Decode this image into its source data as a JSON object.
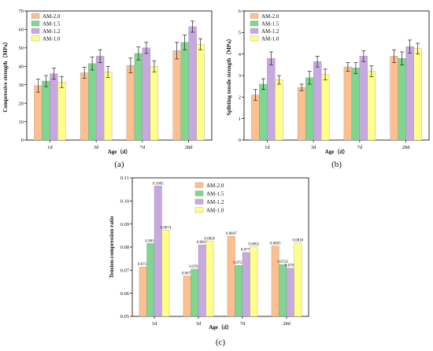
{
  "colors": [
    "#FDBF8E",
    "#7ED68F",
    "#C8A8E0",
    "#FFFF8A"
  ],
  "chart_data": [
    {
      "type": "bar",
      "panel_label": "(a)",
      "categories": [
        "1d",
        "3d",
        "7d",
        "28d"
      ],
      "xlabel": "Age（d）",
      "ylabel": "Compressive strength（MPa）",
      "ylim": [
        0,
        70
      ],
      "yticks": [
        0,
        10,
        20,
        30,
        40,
        50,
        60,
        70
      ],
      "legend_position": "top-left",
      "series": [
        {
          "name": "AM-2.0",
          "values": [
            29.5,
            36.5,
            40.5,
            48.5
          ],
          "errors": [
            3.5,
            3.0,
            4.0,
            4.5
          ]
        },
        {
          "name": "AM-1.5",
          "values": [
            32.0,
            41.5,
            47.0,
            53.0
          ],
          "errors": [
            3.0,
            3.5,
            3.5,
            4.0
          ]
        },
        {
          "name": "AM-1.2",
          "values": [
            36.0,
            45.5,
            50.0,
            61.5
          ],
          "errors": [
            3.0,
            3.5,
            3.0,
            3.0
          ]
        },
        {
          "name": "AM-1.0",
          "values": [
            31.5,
            37.0,
            40.0,
            52.0
          ],
          "errors": [
            3.0,
            3.0,
            3.0,
            3.0
          ]
        }
      ]
    },
    {
      "type": "bar",
      "panel_label": "(b)",
      "categories": [
        "1d",
        "3d",
        "7d",
        "28d"
      ],
      "xlabel": "Age（d）",
      "ylabel": "Splitting tensile strength（MPa）",
      "ylim": [
        0,
        6
      ],
      "yticks": [
        0,
        1,
        2,
        3,
        4,
        5,
        6
      ],
      "legend_position": "top-left",
      "series": [
        {
          "name": "AM-2.0",
          "values": [
            2.1,
            2.45,
            3.4,
            3.9
          ],
          "errors": [
            0.25,
            0.15,
            0.2,
            0.3
          ]
        },
        {
          "name": "AM-1.5",
          "values": [
            2.6,
            2.9,
            3.35,
            3.8
          ],
          "errors": [
            0.25,
            0.3,
            0.25,
            0.3
          ]
        },
        {
          "name": "AM-1.2",
          "values": [
            3.8,
            3.65,
            3.9,
            4.35
          ],
          "errors": [
            0.3,
            0.25,
            0.25,
            0.3
          ]
        },
        {
          "name": "AM-1.0",
          "values": [
            2.8,
            3.05,
            3.2,
            4.25
          ],
          "errors": [
            0.2,
            0.25,
            0.25,
            0.25
          ]
        }
      ]
    },
    {
      "type": "bar",
      "panel_label": "(c)",
      "categories": [
        "1d",
        "3d",
        "7d",
        "28d"
      ],
      "xlabel": "Age（d）",
      "ylabel": "Tension-compression ratio",
      "ylim": [
        0.05,
        0.11
      ],
      "yticks": [
        "0.05",
        "0.06",
        "0.07",
        "0.08",
        "0.09",
        "0.10",
        "0.11"
      ],
      "legend_position": "top-center",
      "series": [
        {
          "name": "AM-2.0",
          "values": [
            0.0714,
            0.0675,
            0.0847,
            0.0805
          ],
          "labels": [
            "0.0714",
            "0.0675",
            "0.0847",
            "0.0805"
          ]
        },
        {
          "name": "AM-1.5",
          "values": [
            0.0816,
            0.0705,
            0.0721,
            0.0725
          ],
          "labels": [
            "0.0816",
            "0.0705",
            "0.0721",
            "0.0725"
          ]
        },
        {
          "name": "AM-1.2",
          "values": [
            0.1065,
            0.081,
            0.0777,
            0.0709
          ],
          "labels": [
            "0.1065",
            "0.0810",
            "0.0777",
            "0.0709"
          ]
        },
        {
          "name": "AM-1.0",
          "values": [
            0.0874,
            0.0826,
            0.0802,
            0.0818
          ],
          "labels": [
            "0.0874",
            "0.0826",
            "0.0802",
            "0.0818"
          ]
        }
      ]
    }
  ]
}
